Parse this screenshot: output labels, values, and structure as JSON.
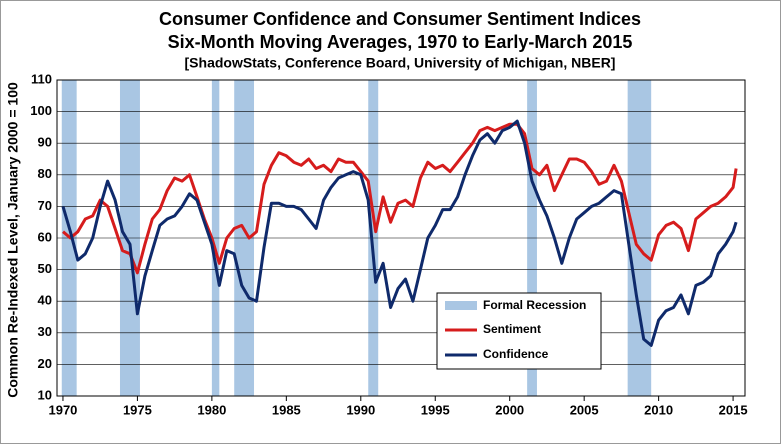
{
  "chart_data": {
    "type": "line",
    "title": "Consumer Confidence and Consumer Sentiment Indices",
    "subtitle": "Six-Month Moving Averages, 1970 to Early-March 2015",
    "source": "[ShadowStats, Conference Board, University of Michigan, NBER]",
    "y_label": "Common Re-Indexed Level, January 2000 = 100",
    "xlim": [
      1969.6,
      2015.8
    ],
    "ylim": [
      10,
      110
    ],
    "xticks": [
      1970,
      1975,
      1980,
      1985,
      1990,
      1995,
      2000,
      2005,
      2010,
      2015
    ],
    "yticks": [
      10,
      20,
      30,
      40,
      50,
      60,
      70,
      80,
      90,
      100,
      110
    ],
    "grid": true,
    "recessions": {
      "name": "Formal Recession",
      "color": "#a9c6e3",
      "ranges": [
        [
          1969.92,
          1970.92
        ],
        [
          1973.83,
          1975.17
        ],
        [
          1980.0,
          1980.5
        ],
        [
          1981.5,
          1982.83
        ],
        [
          1990.5,
          1991.17
        ],
        [
          2001.17,
          2001.83
        ],
        [
          2007.92,
          2009.5
        ]
      ]
    },
    "x": [
      1970.0,
      1970.5,
      1971.0,
      1971.5,
      1972.0,
      1972.5,
      1973.0,
      1973.5,
      1974.0,
      1974.5,
      1975.0,
      1975.5,
      1976.0,
      1976.5,
      1977.0,
      1977.5,
      1978.0,
      1978.5,
      1979.0,
      1979.5,
      1980.0,
      1980.5,
      1981.0,
      1981.5,
      1982.0,
      1982.5,
      1983.0,
      1983.5,
      1984.0,
      1984.5,
      1985.0,
      1985.5,
      1986.0,
      1986.5,
      1987.0,
      1987.5,
      1988.0,
      1988.5,
      1989.0,
      1989.5,
      1990.0,
      1990.5,
      1991.0,
      1991.5,
      1992.0,
      1992.5,
      1993.0,
      1993.5,
      1994.0,
      1994.5,
      1995.0,
      1995.5,
      1996.0,
      1996.5,
      1997.0,
      1997.5,
      1998.0,
      1998.5,
      1999.0,
      1999.5,
      2000.0,
      2000.5,
      2001.0,
      2001.5,
      2002.0,
      2002.5,
      2003.0,
      2003.5,
      2004.0,
      2004.5,
      2005.0,
      2005.5,
      2006.0,
      2006.5,
      2007.0,
      2007.5,
      2008.0,
      2008.5,
      2009.0,
      2009.5,
      2010.0,
      2010.5,
      2011.0,
      2011.5,
      2012.0,
      2012.5,
      2013.0,
      2013.5,
      2014.0,
      2014.5,
      2015.0,
      2015.2
    ],
    "series": [
      {
        "name": "Sentiment",
        "color": "#d61c1c",
        "values": [
          62,
          60,
          62,
          66,
          67,
          72,
          70,
          63,
          56,
          55,
          49,
          58,
          66,
          69,
          75,
          79,
          78,
          80,
          73,
          66,
          60,
          52,
          60,
          63,
          64,
          60,
          62,
          77,
          83,
          87,
          86,
          84,
          83,
          85,
          82,
          83,
          81,
          85,
          84,
          84,
          81,
          78,
          62,
          73,
          65,
          71,
          72,
          70,
          79,
          84,
          82,
          83,
          81,
          84,
          87,
          90,
          94,
          95,
          94,
          95,
          96,
          96,
          93,
          82,
          80,
          83,
          75,
          80,
          85,
          85,
          84,
          81,
          77,
          78,
          83,
          78,
          68,
          58,
          55,
          53,
          61,
          64,
          65,
          63,
          56,
          66,
          68,
          70,
          71,
          73,
          76,
          82
        ]
      },
      {
        "name": "Confidence",
        "color": "#0f2a6b",
        "values": [
          70,
          62,
          53,
          55,
          60,
          70,
          78,
          72,
          62,
          58,
          36,
          48,
          56,
          64,
          66,
          67,
          70,
          74,
          72,
          65,
          58,
          45,
          56,
          55,
          45,
          41,
          40,
          57,
          71,
          71,
          70,
          70,
          69,
          66,
          63,
          72,
          76,
          79,
          80,
          81,
          80,
          72,
          46,
          52,
          38,
          44,
          47,
          40,
          50,
          60,
          64,
          69,
          69,
          73,
          80,
          86,
          91,
          93,
          90,
          94,
          95,
          97,
          90,
          78,
          72,
          67,
          60,
          52,
          60,
          66,
          68,
          70,
          71,
          73,
          75,
          74,
          58,
          42,
          28,
          26,
          34,
          37,
          38,
          42,
          36,
          45,
          46,
          48,
          55,
          58,
          62,
          65
        ]
      }
    ]
  }
}
